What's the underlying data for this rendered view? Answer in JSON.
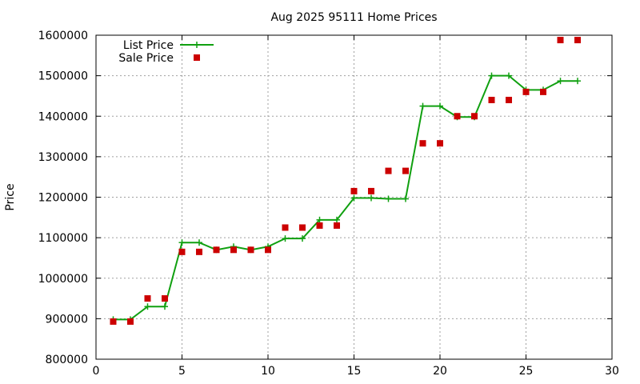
{
  "chart_data": {
    "type": "line",
    "title": "Aug 2025 95111 Home Prices",
    "xlabel": "",
    "ylabel": "Price",
    "xlim": [
      0,
      30
    ],
    "ylim": [
      800000,
      1600000
    ],
    "xticks": [
      0,
      5,
      10,
      15,
      20,
      25,
      30
    ],
    "yticks": [
      800000,
      900000,
      1000000,
      1100000,
      1200000,
      1300000,
      1400000,
      1500000,
      1600000
    ],
    "grid": true,
    "legend": "top-left",
    "series": [
      {
        "name": "List Price",
        "style": "line-with-plus-markers",
        "color": "#10a010",
        "x": [
          1,
          2,
          3,
          4,
          5,
          6,
          7,
          8,
          9,
          10,
          11,
          12,
          13,
          14,
          15,
          16,
          17,
          18,
          19,
          20,
          21,
          22,
          23,
          24,
          25,
          26,
          27,
          28
        ],
        "values": [
          898000,
          898000,
          930000,
          930000,
          1088000,
          1088000,
          1070000,
          1078000,
          1070000,
          1078000,
          1098000,
          1098000,
          1144000,
          1144000,
          1198000,
          1198000,
          1196000,
          1196000,
          1425000,
          1425000,
          1398000,
          1398000,
          1500000,
          1500000,
          1465000,
          1465000,
          1487000,
          1487000
        ]
      },
      {
        "name": "Sale Price",
        "style": "square-markers",
        "color": "#cc0000",
        "x": [
          1,
          2,
          3,
          4,
          5,
          6,
          7,
          8,
          9,
          10,
          11,
          12,
          13,
          14,
          15,
          16,
          17,
          18,
          19,
          20,
          21,
          22,
          23,
          24,
          25,
          26,
          27,
          28
        ],
        "values": [
          893000,
          893000,
          950000,
          950000,
          1065000,
          1065000,
          1070000,
          1070000,
          1070000,
          1070000,
          1125000,
          1125000,
          1130000,
          1130000,
          1215000,
          1215000,
          1265000,
          1265000,
          1333000,
          1333000,
          1400000,
          1400000,
          1440000,
          1440000,
          1460000,
          1460000,
          1588000,
          1588000
        ]
      }
    ]
  }
}
